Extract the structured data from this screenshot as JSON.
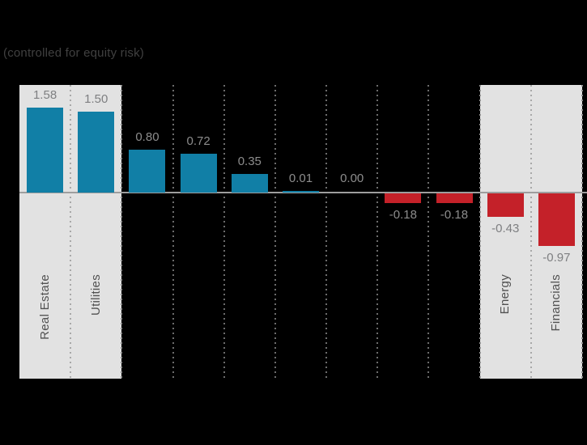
{
  "subtitle": "(controlled for equity risk)",
  "chart_data": {
    "type": "bar",
    "title": "",
    "subtitle": "(controlled for equity risk)",
    "xlabel": "",
    "ylabel": "",
    "categories": [
      "Real Estate",
      "Utilities",
      "",
      "",
      "",
      "",
      "",
      "",
      "",
      "Energy",
      "Financials"
    ],
    "values": [
      1.58,
      1.5,
      0.8,
      0.72,
      0.35,
      0.01,
      0.0,
      -0.18,
      -0.18,
      -0.43,
      -0.97
    ],
    "value_labels": [
      "1.58",
      "1.50",
      "0.80",
      "0.72",
      "0.35",
      "0.01",
      "0.00",
      "-0.18",
      "-0.18",
      "-0.43",
      "-0.97"
    ],
    "baseline": 0,
    "ylim": [
      -3.46,
      2.0
    ],
    "grid": "dotted-vertical-between-columns",
    "legend": "none",
    "highlight_columns": [
      [
        0,
        1
      ],
      [
        9,
        10
      ]
    ],
    "colors": {
      "background": "#000000",
      "positive_bar": "#117fa6",
      "negative_bar": "#c42129",
      "highlight_band": "#e2e2e2",
      "zero_line": "#9e9e9e",
      "value_label": "#8d8d8d",
      "category_label": "#515151",
      "grid_dot_on_black": "#6c6c6c",
      "grid_dot_on_band": "#a8a8a8",
      "grid_dot_on_edge": "#909090"
    }
  }
}
